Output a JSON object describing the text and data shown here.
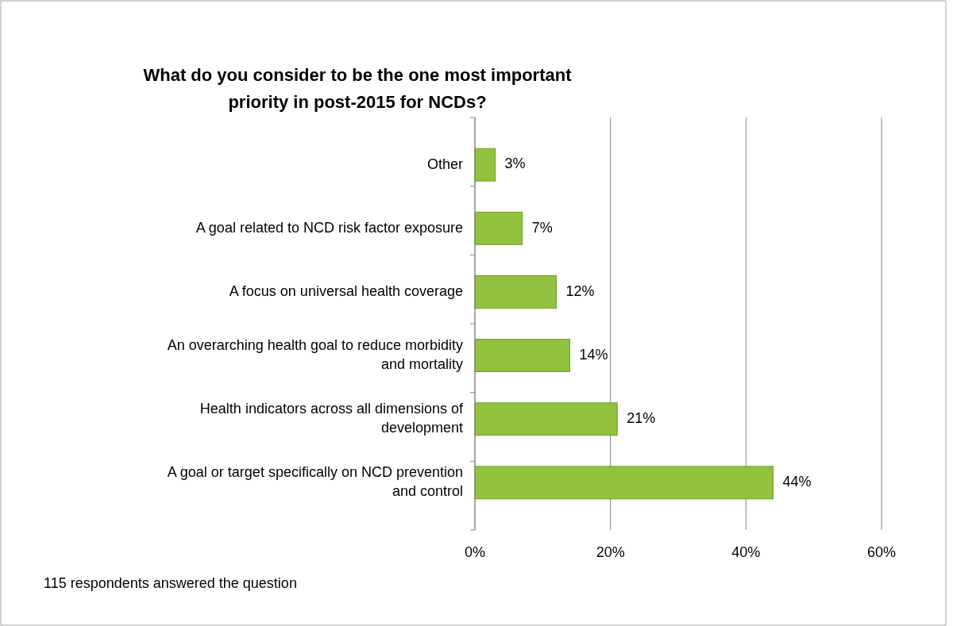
{
  "chart_data": {
    "type": "bar",
    "orientation": "horizontal",
    "title": "What do you consider to be the one most important priority in post-2015 for NCDs?",
    "categories": [
      "Other",
      "A goal related to NCD risk factor exposure",
      "A focus on universal health coverage",
      "An overarching health goal to reduce morbidity and mortality",
      "Health indicators across all dimensions of development",
      "A goal or target specifically on NCD prevention and control"
    ],
    "values": [
      3,
      7,
      12,
      14,
      21,
      44
    ],
    "value_labels": [
      "3%",
      "7%",
      "12%",
      "14%",
      "21%",
      "44%"
    ],
    "color": "#92c23e",
    "xlim": [
      0,
      60
    ],
    "xticks": [
      {
        "value": 0,
        "label": "0%"
      },
      {
        "value": 20,
        "label": "20%"
      },
      {
        "value": 40,
        "label": "40%"
      },
      {
        "value": 60,
        "label": "60%"
      }
    ],
    "grid": "x",
    "annotations": [
      "115 respondents answered the question"
    ]
  }
}
